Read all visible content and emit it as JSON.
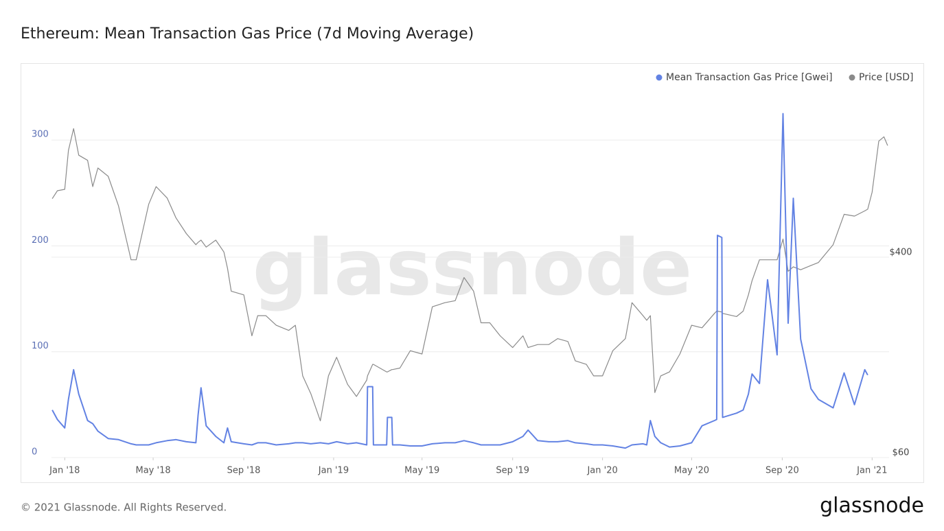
{
  "chart_data": {
    "type": "line",
    "title": "Ethereum: Mean Transaction Gas Price (7d Moving Average)",
    "watermark": "glassnode",
    "footer": "© 2021 Glassnode. All Rights Reserved.",
    "logo": "glassnode",
    "x": [
      "2017-12-15",
      "2017-12-22",
      "2018-01-01",
      "2018-01-06",
      "2018-01-13",
      "2018-01-20",
      "2018-02-01",
      "2018-02-08",
      "2018-02-15",
      "2018-03-01",
      "2018-03-15",
      "2018-04-01",
      "2018-04-08",
      "2018-04-25",
      "2018-05-05",
      "2018-05-20",
      "2018-06-01",
      "2018-06-15",
      "2018-06-28",
      "2018-07-01",
      "2018-07-05",
      "2018-07-12",
      "2018-07-25",
      "2018-08-05",
      "2018-08-10",
      "2018-08-15",
      "2018-09-01",
      "2018-09-12",
      "2018-09-20",
      "2018-10-01",
      "2018-10-15",
      "2018-11-01",
      "2018-11-10",
      "2018-11-20",
      "2018-12-01",
      "2018-12-14",
      "2018-12-25",
      "2019-01-05",
      "2019-01-20",
      "2019-02-01",
      "2019-02-15",
      "2019-02-16",
      "2019-02-23",
      "2019-02-24",
      "2019-03-14",
      "2019-03-15",
      "2019-03-21",
      "2019-03-22",
      "2019-04-01",
      "2019-04-15",
      "2019-05-01",
      "2019-05-15",
      "2019-06-01",
      "2019-06-15",
      "2019-06-27",
      "2019-07-10",
      "2019-07-20",
      "2019-08-01",
      "2019-08-15",
      "2019-09-01",
      "2019-09-15",
      "2019-09-22",
      "2019-10-05",
      "2019-10-20",
      "2019-11-01",
      "2019-11-15",
      "2019-11-25",
      "2019-12-10",
      "2019-12-20",
      "2020-01-01",
      "2020-01-15",
      "2020-02-01",
      "2020-02-10",
      "2020-02-25",
      "2020-03-01",
      "2020-03-06",
      "2020-03-12",
      "2020-03-20",
      "2020-04-01",
      "2020-04-15",
      "2020-05-01",
      "2020-05-15",
      "2020-06-01",
      "2020-06-04",
      "2020-06-05",
      "2020-06-11",
      "2020-06-12",
      "2020-07-01",
      "2020-07-10",
      "2020-07-17",
      "2020-07-22",
      "2020-08-01",
      "2020-08-12",
      "2020-08-25",
      "2020-09-02",
      "2020-09-09",
      "2020-09-16",
      "2020-09-26",
      "2020-10-10",
      "2020-10-20",
      "2020-11-09",
      "2020-11-24",
      "2020-12-08",
      "2020-12-22",
      "2020-12-26",
      "2021-01-01",
      "2021-01-10",
      "2021-01-17",
      "2021-01-22"
    ],
    "series": [
      {
        "name": "Mean Transaction Gas Price [Gwei]",
        "color": "#6282e3",
        "axis": "y",
        "values": [
          45,
          36,
          28,
          55,
          83,
          60,
          35,
          32,
          25,
          18,
          17,
          13,
          12,
          12,
          14,
          16,
          17,
          15,
          14,
          40,
          66,
          30,
          20,
          14,
          28,
          15,
          13,
          12,
          14,
          14,
          12,
          13,
          14,
          14,
          13,
          14,
          13,
          15,
          13,
          14,
          12,
          67,
          67,
          12,
          12,
          38,
          38,
          12,
          12,
          11,
          11,
          13,
          14,
          14,
          16,
          14,
          12,
          12,
          12,
          15,
          20,
          26,
          16,
          15,
          15,
          16,
          14,
          13,
          12,
          12,
          11,
          9,
          12,
          13,
          12,
          35,
          20,
          14,
          10,
          11,
          14,
          30,
          35,
          36,
          210,
          208,
          38,
          42,
          45,
          60,
          79,
          70,
          168,
          97,
          325,
          127,
          245,
          112,
          65,
          55,
          47,
          80,
          50,
          83,
          78,
          null,
          null,
          null,
          null
        ]
      },
      {
        "name": "Price [USD]",
        "color": "#8a8a8a",
        "axis": "y2",
        "values": [
          696,
          750,
          760,
          1100,
          1350,
          1050,
          1000,
          780,
          930,
          860,
          650,
          390,
          390,
          660,
          780,
          700,
          580,
          500,
          450,
          460,
          470,
          440,
          470,
          420,
          360,
          290,
          280,
          190,
          230,
          230,
          210,
          200,
          210,
          130,
          110,
          85,
          130,
          155,
          120,
          107,
          125,
          130,
          145,
          145,
          135,
          135,
          138,
          138,
          140,
          165,
          160,
          250,
          260,
          265,
          330,
          290,
          215,
          215,
          190,
          170,
          190,
          170,
          175,
          175,
          185,
          180,
          150,
          145,
          130,
          130,
          165,
          185,
          260,
          230,
          220,
          230,
          111,
          130,
          135,
          160,
          210,
          205,
          235,
          240,
          240,
          238,
          235,
          228,
          240,
          280,
          320,
          390,
          390,
          390,
          475,
          350,
          365,
          355,
          370,
          380,
          450,
          600,
          590,
          620,
          630,
          740,
          1200,
          1250,
          1150
        ]
      }
    ],
    "xlim": [
      "2017-12-14",
      "2021-01-24"
    ],
    "xticks": [
      {
        "value": "2018-01-01",
        "label": "Jan '18"
      },
      {
        "value": "2018-05-01",
        "label": "May '18"
      },
      {
        "value": "2018-09-01",
        "label": "Sep '18"
      },
      {
        "value": "2019-01-01",
        "label": "Jan '19"
      },
      {
        "value": "2019-05-01",
        "label": "May '19"
      },
      {
        "value": "2019-09-01",
        "label": "Sep '19"
      },
      {
        "value": "2020-01-01",
        "label": "Jan '20"
      },
      {
        "value": "2020-05-01",
        "label": "May '20"
      },
      {
        "value": "2020-09-01",
        "label": "Sep '20"
      },
      {
        "value": "2021-01-01",
        "label": "Jan '21"
      }
    ],
    "ylim": [
      0,
      350
    ],
    "yticks": [
      0,
      100,
      200,
      300
    ],
    "y2lim": [
      60,
      2000
    ],
    "y2scale": "log",
    "y2ticks": [
      {
        "value": 60,
        "label": "$60"
      },
      {
        "value": 400,
        "label": "$400"
      }
    ],
    "grid": true
  }
}
